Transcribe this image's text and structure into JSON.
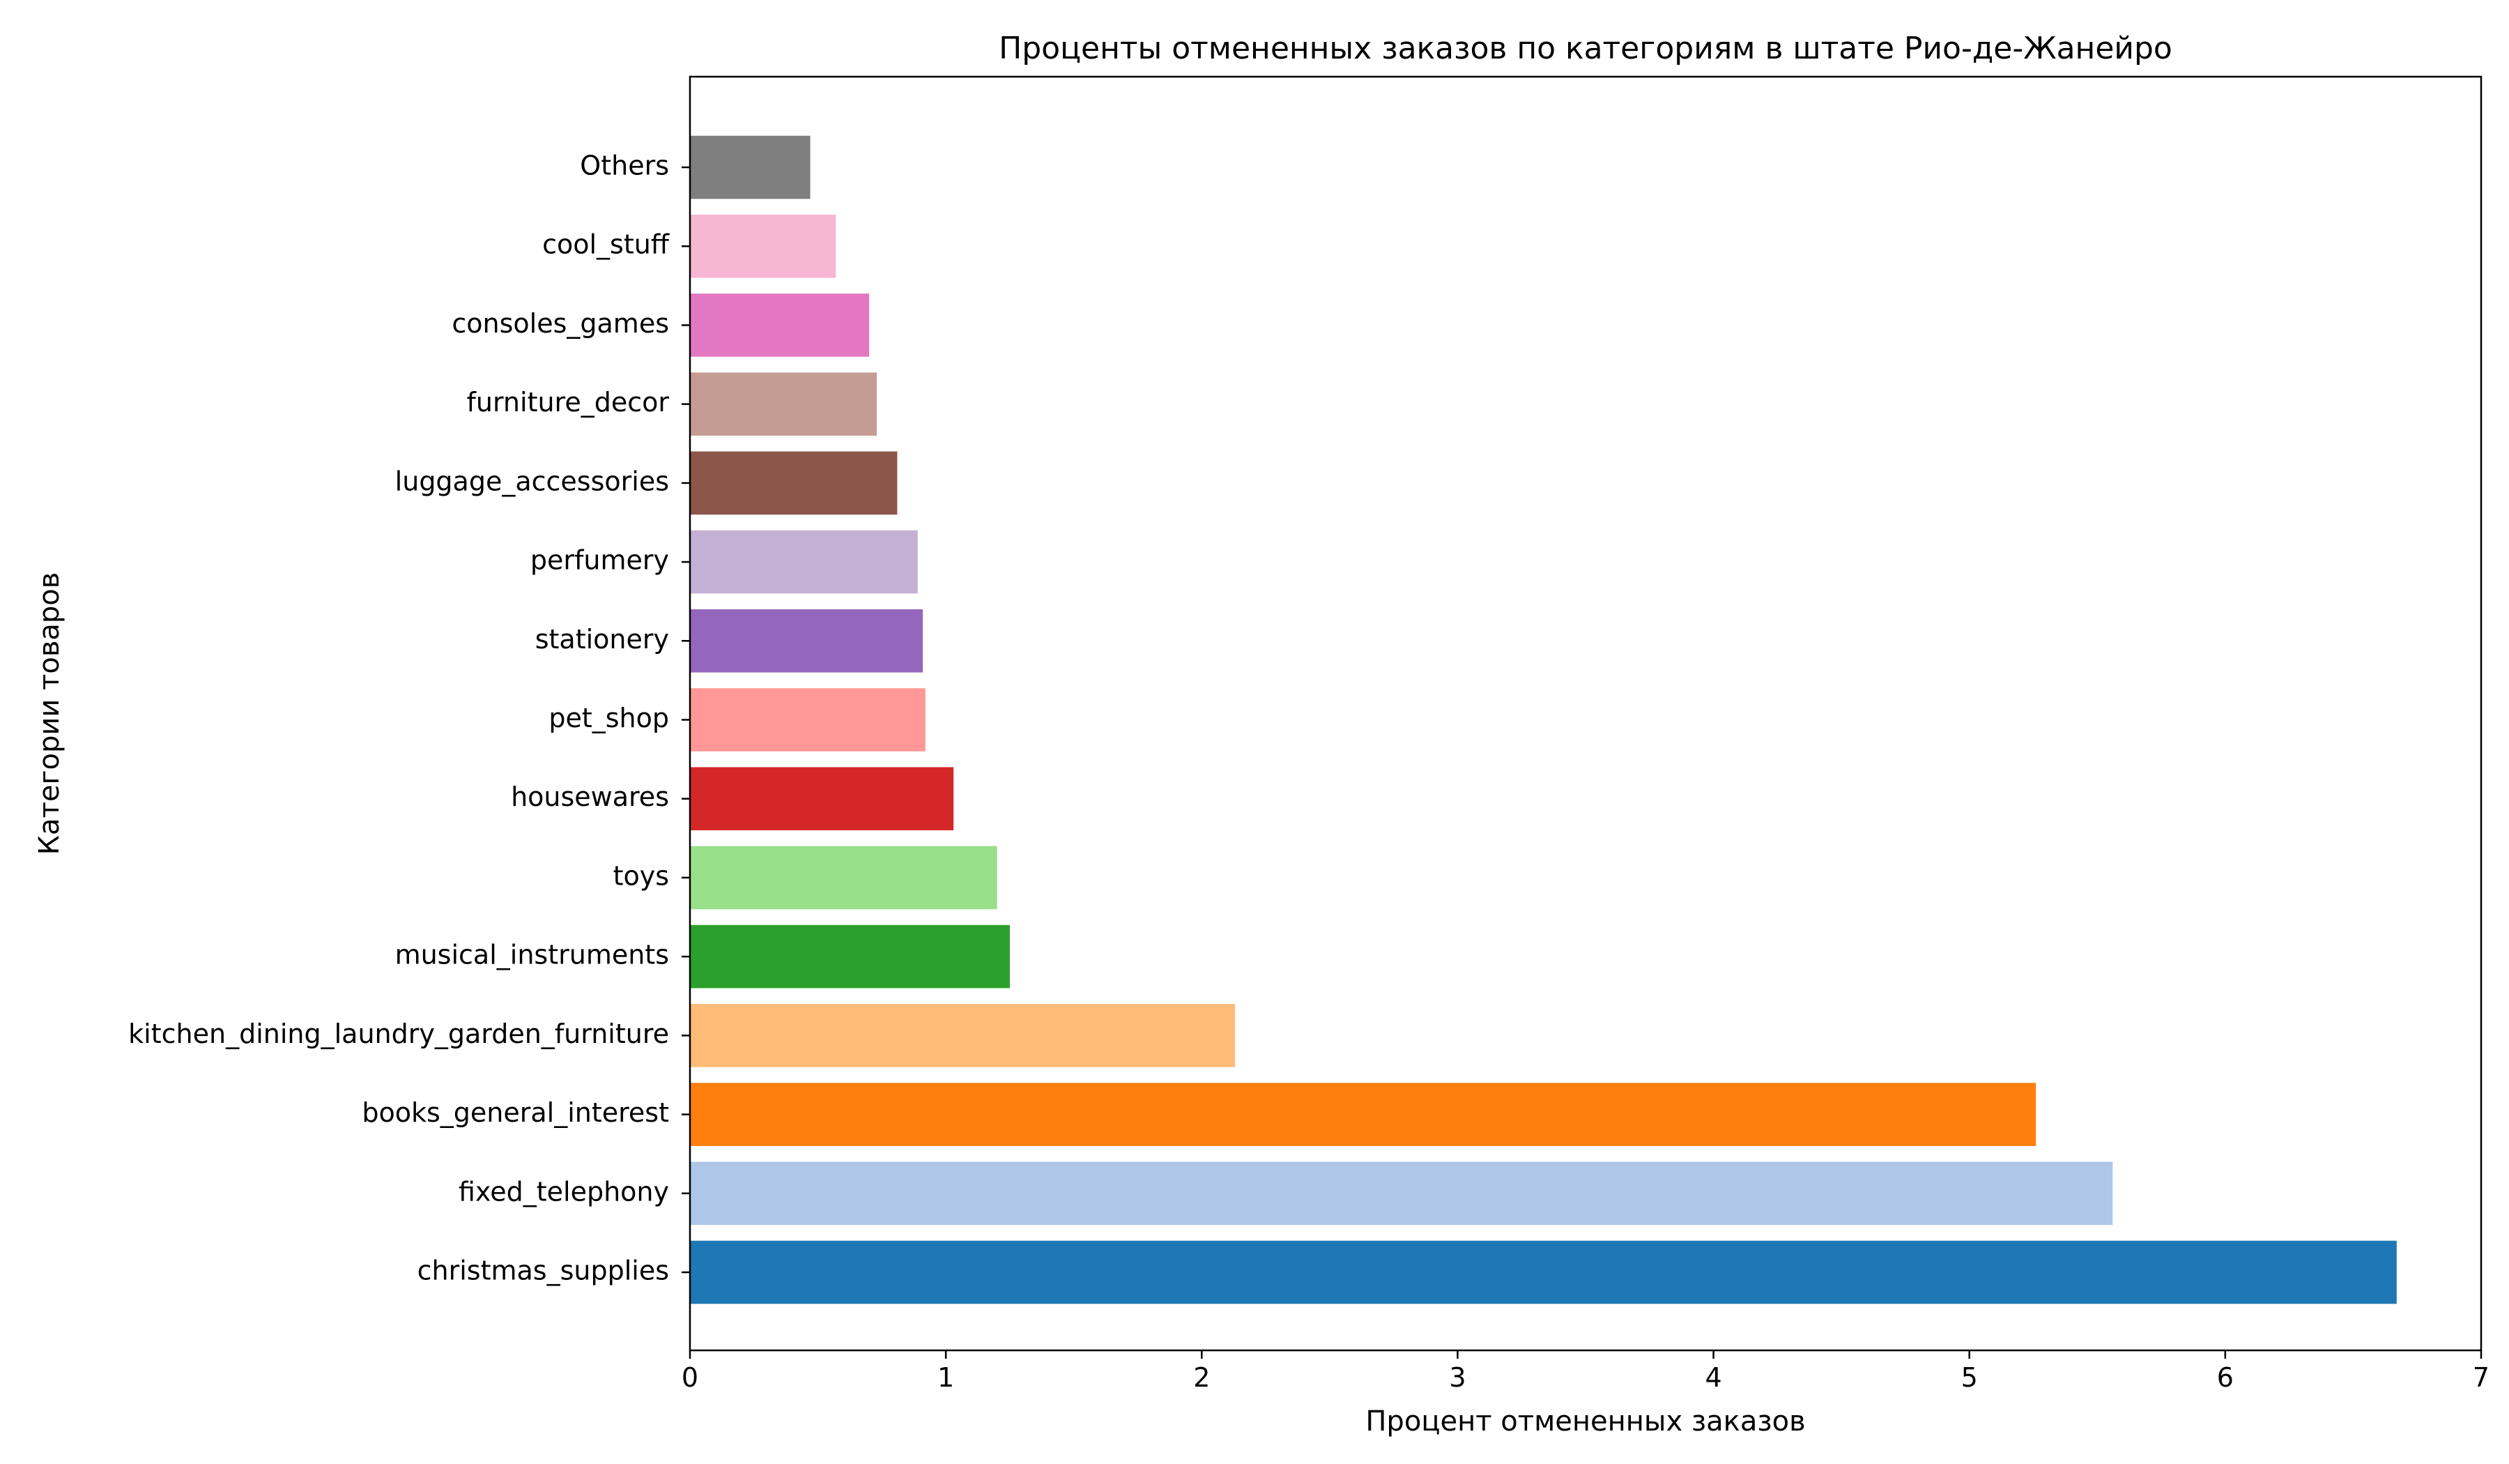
{
  "chart_data": {
    "type": "bar",
    "orientation": "horizontal",
    "title": "Проценты отмененных заказов по категориям в штате Рио-де-Жанейро",
    "xlabel": "Процент отмененных заказов",
    "ylabel": "Категории товаров",
    "xlim": [
      0,
      7
    ],
    "xticks": [
      0,
      1,
      2,
      3,
      4,
      5,
      6,
      7
    ],
    "grid": false,
    "categories": [
      "christmas_supplies",
      "fixed_telephony",
      "books_general_interest",
      "kitchen_dining_laundry_garden_furniture",
      "musical_instruments",
      "toys",
      "housewares",
      "pet_shop",
      "stationery",
      "perfumery",
      "luggage_accessories",
      "furniture_decor",
      "consoles_games",
      "cool_stuff",
      "Others"
    ],
    "values": [
      6.67,
      5.56,
      5.26,
      2.13,
      1.25,
      1.2,
      1.03,
      0.92,
      0.91,
      0.89,
      0.81,
      0.73,
      0.7,
      0.57,
      0.47
    ],
    "colors": [
      "#1f77b4",
      "#aec7e8",
      "#ff7f0e",
      "#ffbb78",
      "#2ca02c",
      "#98df8a",
      "#d62728",
      "#ff9896",
      "#9467bd",
      "#c5b0d5",
      "#8c564b",
      "#c49c94",
      "#e377c2",
      "#f7b6d2",
      "#7f7f7f"
    ]
  }
}
